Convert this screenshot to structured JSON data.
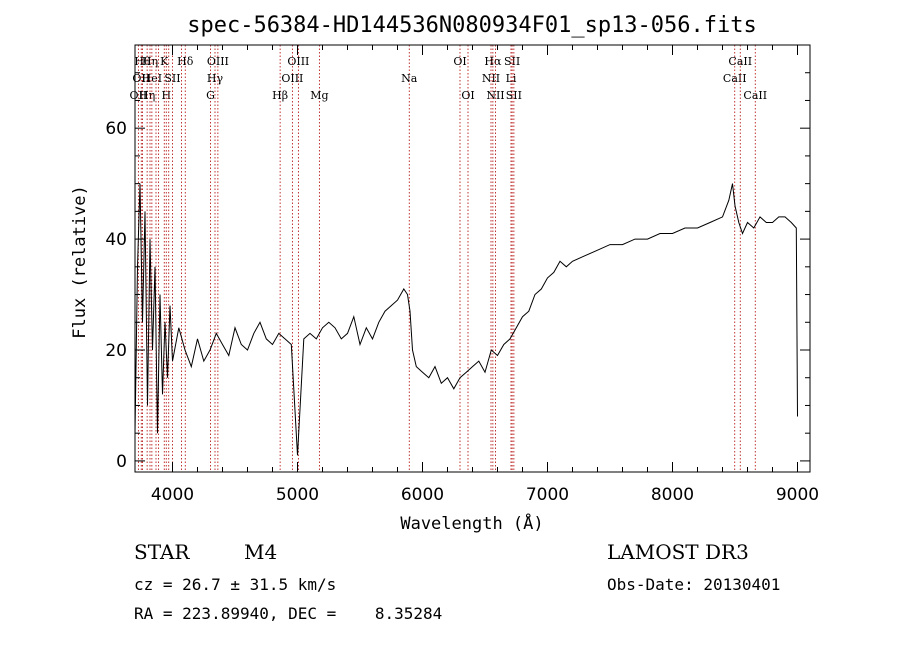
{
  "chart_data": {
    "type": "line",
    "title": "spec-56384-HD144536N080934F01_sp13-056.fits",
    "xlabel": "Wavelength (Å)",
    "ylabel": "Flux (relative)",
    "xlim": [
      3700,
      9100
    ],
    "ylim": [
      -2,
      75
    ],
    "xticks": [
      4000,
      5000,
      6000,
      7000,
      8000,
      9000
    ],
    "yticks": [
      0,
      20,
      40,
      60
    ],
    "series": [
      {
        "name": "flux",
        "x": [
          3700,
          3720,
          3740,
          3760,
          3780,
          3800,
          3820,
          3840,
          3860,
          3880,
          3900,
          3920,
          3940,
          3960,
          3980,
          4000,
          4050,
          4100,
          4150,
          4200,
          4250,
          4300,
          4350,
          4400,
          4450,
          4500,
          4550,
          4600,
          4650,
          4700,
          4750,
          4800,
          4850,
          4900,
          4950,
          5000,
          5050,
          5100,
          5150,
          5200,
          5250,
          5300,
          5350,
          5400,
          5450,
          5500,
          5550,
          5600,
          5650,
          5700,
          5750,
          5800,
          5850,
          5880,
          5900,
          5920,
          5950,
          6000,
          6050,
          6100,
          6150,
          6200,
          6250,
          6300,
          6350,
          6400,
          6450,
          6500,
          6550,
          6600,
          6650,
          6700,
          6750,
          6800,
          6850,
          6900,
          6950,
          7000,
          7050,
          7100,
          7150,
          7200,
          7300,
          7400,
          7500,
          7600,
          7700,
          7800,
          7900,
          8000,
          8100,
          8200,
          8300,
          8400,
          8450,
          8480,
          8500,
          8530,
          8560,
          8600,
          8650,
          8700,
          8750,
          8800,
          8850,
          8900,
          8950,
          8990,
          9000
        ],
        "y": [
          5,
          35,
          50,
          25,
          45,
          10,
          40,
          20,
          35,
          5,
          30,
          12,
          25,
          15,
          28,
          18,
          24,
          20,
          17,
          22,
          18,
          20,
          23,
          21,
          19,
          24,
          21,
          20,
          23,
          25,
          22,
          21,
          23,
          22,
          21,
          1,
          22,
          23,
          22,
          24,
          25,
          24,
          22,
          23,
          26,
          21,
          24,
          22,
          25,
          27,
          28,
          29,
          31,
          30,
          27,
          20,
          17,
          16,
          15,
          17,
          14,
          15,
          13,
          15,
          16,
          17,
          18,
          16,
          20,
          19,
          21,
          22,
          24,
          26,
          27,
          30,
          31,
          33,
          34,
          36,
          35,
          36,
          37,
          38,
          39,
          39,
          40,
          40,
          41,
          41,
          42,
          42,
          43,
          44,
          47,
          50,
          46,
          43,
          41,
          43,
          42,
          44,
          43,
          43,
          44,
          44,
          43,
          42,
          8
        ]
      }
    ],
    "lines": [
      {
        "w": 3727,
        "label": "OII",
        "row": 3
      },
      {
        "w": 3750,
        "label": "OII",
        "row": 2
      },
      {
        "w": 3760,
        "label": "Hθ",
        "row": 1
      },
      {
        "w": 3797,
        "label": "Hη",
        "row": 3
      },
      {
        "w": 3820,
        "label": "Hη",
        "row": 1
      },
      {
        "w": 3835,
        "label": "HeI",
        "row": 2
      },
      {
        "w": 3868,
        "label": "",
        "row": 0
      },
      {
        "w": 3889,
        "label": "",
        "row": 0
      },
      {
        "w": 3934,
        "label": "K",
        "row": 1
      },
      {
        "w": 3950,
        "label": "H",
        "row": 3
      },
      {
        "w": 3970,
        "label": "",
        "row": 0
      },
      {
        "w": 4000,
        "label": "SII",
        "row": 2
      },
      {
        "w": 4072,
        "label": "",
        "row": 0
      },
      {
        "w": 4102,
        "label": "Hδ",
        "row": 1
      },
      {
        "w": 4304,
        "label": "G",
        "row": 3
      },
      {
        "w": 4340,
        "label": "Hγ",
        "row": 2
      },
      {
        "w": 4363,
        "label": "OIII",
        "row": 1
      },
      {
        "w": 4861,
        "label": "Hβ",
        "row": 3
      },
      {
        "w": 4959,
        "label": "OIII",
        "row": 2
      },
      {
        "w": 5007,
        "label": "OIII",
        "row": 1
      },
      {
        "w": 5175,
        "label": "Mg",
        "row": 3
      },
      {
        "w": 5894,
        "label": "Na",
        "row": 2
      },
      {
        "w": 6300,
        "label": "OI",
        "row": 1
      },
      {
        "w": 6364,
        "label": "OI",
        "row": 3
      },
      {
        "w": 6548,
        "label": "NII",
        "row": 2
      },
      {
        "w": 6563,
        "label": "Hα",
        "row": 1
      },
      {
        "w": 6584,
        "label": "NII",
        "row": 3
      },
      {
        "w": 6708,
        "label": "Li",
        "row": 2
      },
      {
        "w": 6717,
        "label": "SII",
        "row": 1
      },
      {
        "w": 6731,
        "label": "SII",
        "row": 3
      },
      {
        "w": 8498,
        "label": "CaII",
        "row": 2
      },
      {
        "w": 8542,
        "label": "CaII",
        "row": 1
      },
      {
        "w": 8662,
        "label": "CaII",
        "row": 3
      }
    ]
  },
  "info": {
    "class_label": "STAR",
    "subclass": "M4",
    "cz": "cz = 26.7 ± 31.5 km/s",
    "coords": "RA = 223.89940, DEC =    8.35284",
    "survey": "LAMOST DR3",
    "obs_date": "Obs-Date: 20130401"
  }
}
